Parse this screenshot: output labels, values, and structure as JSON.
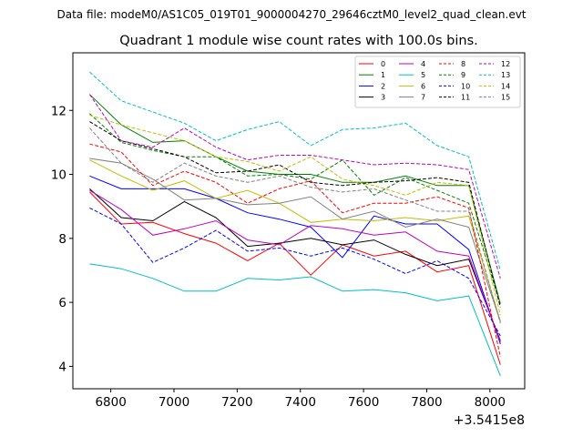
{
  "chart_data": {
    "type": "line",
    "suptitle": "Data file: modeM0/AS1C05_019T01_9000004270_29646cztM0_level2_quad_clean.evt",
    "title": "Quadrant 1 module wise count rates with 100.0s bins.",
    "xlabel": "",
    "ylabel": "",
    "x_offset_label": "+3.5415e8",
    "xlim": [
      6680,
      8110
    ],
    "ylim": [
      3.3,
      13.8
    ],
    "x_ticks": [
      6800,
      7000,
      7200,
      7400,
      7600,
      7800,
      8000
    ],
    "y_ticks": [
      4,
      6,
      8,
      10,
      12
    ],
    "legend_position": "top-right",
    "x": [
      6733,
      6833,
      6933,
      7033,
      7133,
      7233,
      7333,
      7433,
      7533,
      7633,
      7733,
      7833,
      7933,
      8033
    ],
    "series": [
      {
        "name": "0",
        "color": "#ff0000",
        "dash": "solid",
        "values": [
          9.45,
          8.45,
          8.5,
          8.15,
          7.85,
          7.3,
          7.85,
          6.85,
          7.8,
          7.45,
          7.6,
          6.95,
          7.15,
          4.05
        ]
      },
      {
        "name": "1",
        "color": "#008000",
        "dash": "solid",
        "values": [
          12.5,
          11.55,
          11.0,
          11.05,
          10.55,
          10.1,
          10.0,
          10.0,
          9.75,
          9.75,
          9.95,
          9.65,
          9.65,
          5.95
        ]
      },
      {
        "name": "2",
        "color": "#0000ff",
        "dash": "solid",
        "values": [
          9.95,
          9.55,
          9.55,
          9.55,
          9.25,
          8.8,
          8.6,
          8.35,
          7.4,
          8.7,
          8.45,
          8.45,
          7.65,
          4.7
        ]
      },
      {
        "name": "3",
        "color": "#000000",
        "dash": "solid",
        "values": [
          9.55,
          8.65,
          8.55,
          9.15,
          8.65,
          7.75,
          7.85,
          8.0,
          7.8,
          7.95,
          7.5,
          7.15,
          7.35,
          4.8
        ]
      },
      {
        "name": "4",
        "color": "#bf00bf",
        "dash": "solid",
        "values": [
          9.5,
          8.9,
          8.1,
          8.3,
          8.55,
          7.95,
          7.8,
          8.4,
          8.3,
          8.1,
          8.2,
          7.6,
          7.45,
          4.75
        ]
      },
      {
        "name": "5",
        "color": "#00bfbf",
        "dash": "solid",
        "values": [
          7.2,
          7.05,
          6.75,
          6.35,
          6.35,
          6.75,
          6.7,
          6.8,
          6.35,
          6.4,
          6.3,
          6.05,
          6.2,
          3.7
        ]
      },
      {
        "name": "6",
        "color": "#bfbf00",
        "dash": "solid",
        "values": [
          10.45,
          9.95,
          9.5,
          9.8,
          9.25,
          9.5,
          9.1,
          8.5,
          8.6,
          8.55,
          8.65,
          8.55,
          8.7,
          5.4
        ]
      },
      {
        "name": "7",
        "color": "#808080",
        "dash": "solid",
        "values": [
          10.5,
          10.35,
          9.85,
          9.2,
          9.25,
          9.05,
          9.1,
          9.3,
          8.6,
          8.85,
          8.35,
          8.6,
          8.35,
          5.4
        ]
      },
      {
        "name": "8",
        "color": "#ff0000",
        "dash": "dashed",
        "values": [
          10.95,
          10.7,
          9.65,
          10.1,
          9.75,
          9.1,
          9.55,
          9.8,
          8.8,
          9.1,
          9.1,
          9.3,
          8.95,
          4.3
        ]
      },
      {
        "name": "9",
        "color": "#008000",
        "dash": "dashed",
        "values": [
          11.9,
          11.0,
          10.75,
          10.55,
          10.55,
          9.95,
          10.0,
          9.85,
          10.45,
          9.35,
          9.9,
          9.5,
          9.1,
          5.95
        ]
      },
      {
        "name": "10",
        "color": "#0000ff",
        "dash": "dashed",
        "values": [
          8.95,
          8.45,
          7.25,
          7.7,
          8.25,
          7.6,
          7.7,
          7.45,
          7.7,
          7.35,
          6.9,
          7.3,
          6.75,
          4.95
        ]
      },
      {
        "name": "11",
        "color": "#000000",
        "dash": "dashed",
        "values": [
          11.65,
          11.05,
          10.8,
          10.55,
          10.05,
          10.1,
          10.3,
          9.75,
          9.65,
          9.75,
          9.8,
          9.9,
          9.75,
          5.85
        ]
      },
      {
        "name": "12",
        "color": "#bf00bf",
        "dash": "dashed",
        "values": [
          12.5,
          11.05,
          10.85,
          11.45,
          10.85,
          10.45,
          10.6,
          10.6,
          10.45,
          10.3,
          10.35,
          10.3,
          10.15,
          6.75
        ]
      },
      {
        "name": "13",
        "color": "#00bfbf",
        "dash": "dashed",
        "values": [
          13.2,
          12.3,
          11.95,
          11.6,
          11.05,
          11.4,
          11.65,
          10.9,
          11.4,
          11.45,
          11.6,
          10.9,
          10.55,
          7.0
        ]
      },
      {
        "name": "14",
        "color": "#bfbf00",
        "dash": "dashed",
        "values": [
          11.85,
          11.55,
          11.3,
          11.05,
          10.55,
          10.4,
          10.1,
          10.55,
          9.85,
          9.65,
          9.35,
          9.75,
          9.65,
          5.6
        ]
      },
      {
        "name": "15",
        "color": "#808080",
        "dash": "dashed",
        "values": [
          11.45,
          10.35,
          9.75,
          10.35,
          9.95,
          9.75,
          9.95,
          9.6,
          9.45,
          9.55,
          9.2,
          8.85,
          8.85,
          5.35
        ]
      }
    ]
  }
}
